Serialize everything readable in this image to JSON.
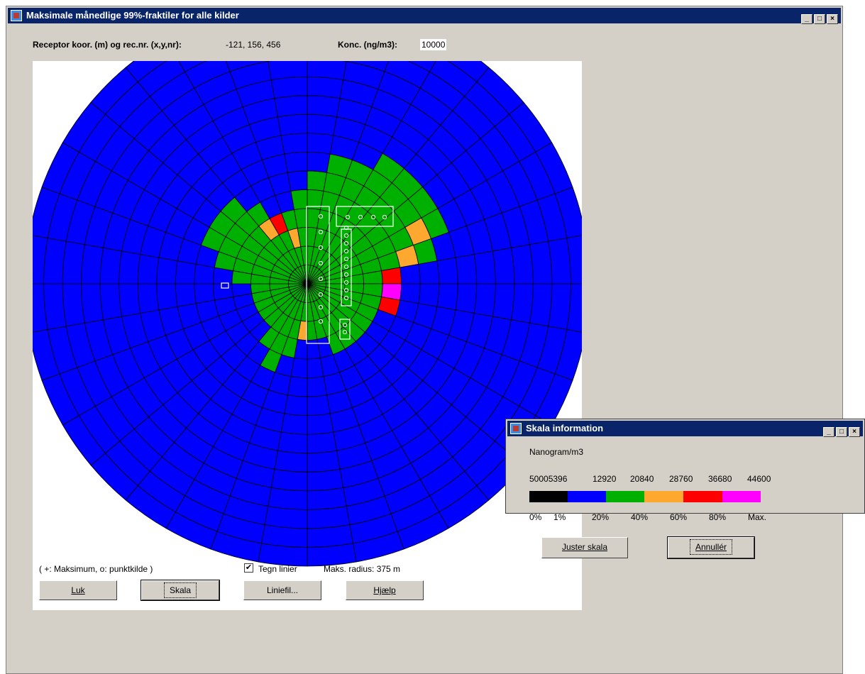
{
  "main_window": {
    "title": "Maksimale månedlige 99%-fraktiler for alle kilder",
    "receptor_label": "Receptor koor. (m) og rec.nr. (x,y,nr):",
    "receptor_value": "-121, 156, 456",
    "konc_label": "Konc. (ng/m3):",
    "konc_value": "10000",
    "legend_text": "( +:  Maksimum,  o:  punktkilde )",
    "draw_lines_label": "Tegn linier",
    "draw_lines_checked": true,
    "max_radius_label": "Maks. radius:  375 m",
    "buttons": {
      "close": "Luk",
      "scale": "Skala",
      "linefile": "Liniefil...",
      "help": "Hjælp"
    }
  },
  "plot": {
    "rings": 15,
    "sectors": 36,
    "colors": {
      "blue": "#0000ff",
      "green": "#00b000",
      "orange": "#ffa830",
      "red": "#ff0000",
      "magenta": "#ff00ff",
      "grid": "#000000",
      "source": "#ffffff"
    },
    "cells_green": [
      [
        0,
        5
      ],
      [
        1,
        6
      ],
      [
        2,
        6
      ],
      [
        3,
        7
      ],
      [
        4,
        7
      ],
      [
        5,
        7
      ],
      [
        6,
        7
      ],
      [
        7,
        6
      ],
      [
        8,
        4
      ],
      [
        9,
        3
      ],
      [
        10,
        3
      ],
      [
        11,
        3
      ],
      [
        12,
        3
      ],
      [
        13,
        3
      ],
      [
        14,
        3
      ],
      [
        15,
        3
      ],
      [
        16,
        2
      ],
      [
        17,
        2
      ],
      [
        18,
        2
      ],
      [
        19,
        3
      ],
      [
        20,
        4
      ],
      [
        21,
        3
      ],
      [
        22,
        2
      ],
      [
        23,
        2
      ],
      [
        24,
        2
      ],
      [
        25,
        2
      ],
      [
        26,
        2
      ],
      [
        27,
        3
      ],
      [
        28,
        4
      ],
      [
        29,
        5
      ],
      [
        30,
        5
      ],
      [
        31,
        5
      ],
      [
        32,
        4
      ],
      [
        33,
        3
      ],
      [
        34,
        3
      ],
      [
        35,
        4
      ]
    ],
    "cells_orange": [
      [
        6,
        6
      ],
      [
        7,
        5
      ],
      [
        18,
        2
      ],
      [
        34,
        2
      ],
      [
        32,
        3
      ]
    ],
    "cells_red": [
      [
        8,
        4
      ],
      [
        10,
        4
      ],
      [
        33,
        3
      ]
    ],
    "cells_magenta": [
      [
        9,
        4
      ]
    ]
  },
  "scale_window": {
    "title": "Skala information",
    "unit": "Nanogram/m3",
    "values": [
      "50005396",
      "12920",
      "20840",
      "28760",
      "36680",
      "44600"
    ],
    "bar_colors": [
      "#000000",
      "#0000ff",
      "#00b000",
      "#ffa830",
      "#ff0000",
      "#ff00ff"
    ],
    "percent_labels": [
      "0%",
      "1%",
      "20%",
      "40%",
      "60%",
      "80%",
      "Max."
    ],
    "buttons": {
      "adjust": "Juster skala",
      "cancel": "Annullér"
    }
  }
}
